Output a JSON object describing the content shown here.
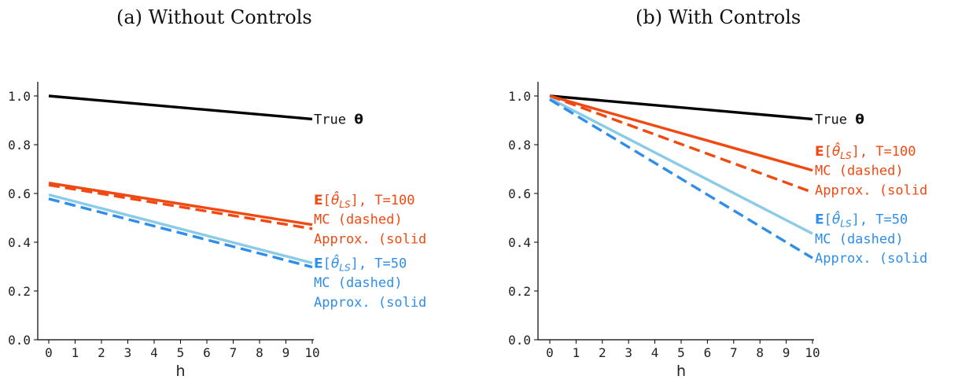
{
  "panels": [
    {
      "title": "(a) Without Controls",
      "chart_data": {
        "type": "line",
        "xlabel": "h",
        "ylabel": "",
        "xlim": [
          0,
          10
        ],
        "ylim": [
          0,
          1.0
        ],
        "x_ticks": [
          0,
          1,
          2,
          3,
          4,
          5,
          6,
          7,
          8,
          9,
          10
        ],
        "y_ticks": [
          0.0,
          0.2,
          0.4,
          0.6,
          0.8,
          1.0
        ],
        "grid": false,
        "series": [
          {
            "key": "true_theta",
            "color": "#000000",
            "dashed": false,
            "x": [
              0,
              10
            ],
            "y": [
              1.0,
              0.905
            ]
          },
          {
            "key": "approx_t100",
            "color": "#f04a12",
            "dashed": false,
            "x": [
              0,
              10
            ],
            "y": [
              0.643,
              0.472
            ]
          },
          {
            "key": "mc_t100",
            "color": "#f04a12",
            "dashed": true,
            "x": [
              0,
              10
            ],
            "y": [
              0.635,
              0.455
            ]
          },
          {
            "key": "approx_t50",
            "color": "#8ccbe8",
            "dashed": false,
            "x": [
              0,
              10
            ],
            "y": [
              0.595,
              0.315
            ]
          },
          {
            "key": "mc_t50",
            "color": "#2f8ee8",
            "dashed": true,
            "x": [
              0,
              10
            ],
            "y": [
              0.578,
              0.298
            ]
          }
        ],
        "annotations": [
          {
            "key": "true",
            "text": "True",
            "bold": "θ",
            "color": "#111111",
            "y": 0.905
          },
          {
            "key": "t100_head",
            "bold": "E",
            "text": "], T=100",
            "color": "#f04a12",
            "y": 0.575
          },
          {
            "key": "t100_mc",
            "text": "MC (dashed)",
            "color": "#f04a12",
            "y": 0.495
          },
          {
            "key": "t100_approx",
            "text": "Approx. (solid",
            "color": "#f04a12",
            "y": 0.415
          },
          {
            "key": "t50_head",
            "bold": "E",
            "text": "], T=50",
            "color": "#2f8ee8",
            "y": 0.315
          },
          {
            "key": "t50_mc",
            "text": "MC (dashed)",
            "color": "#2f8ee8",
            "y": 0.235
          },
          {
            "key": "t50_approx",
            "text": "Approx. (solid",
            "color": "#2f8ee8",
            "y": 0.155
          }
        ]
      }
    },
    {
      "title": "(b) With Controls",
      "chart_data": {
        "type": "line",
        "xlabel": "h",
        "ylabel": "",
        "xlim": [
          0,
          10
        ],
        "ylim": [
          0,
          1.0
        ],
        "x_ticks": [
          0,
          1,
          2,
          3,
          4,
          5,
          6,
          7,
          8,
          9,
          10
        ],
        "y_ticks": [
          0.0,
          0.2,
          0.4,
          0.6,
          0.8,
          1.0
        ],
        "grid": false,
        "series": [
          {
            "key": "true_theta",
            "color": "#000000",
            "dashed": false,
            "x": [
              0,
              10
            ],
            "y": [
              1.0,
              0.905
            ]
          },
          {
            "key": "approx_t100",
            "color": "#f04a12",
            "dashed": false,
            "x": [
              0,
              10
            ],
            "y": [
              1.0,
              0.695
            ]
          },
          {
            "key": "mc_t100",
            "color": "#f04a12",
            "dashed": true,
            "x": [
              0,
              10
            ],
            "y": [
              1.0,
              0.605
            ]
          },
          {
            "key": "approx_t50",
            "color": "#8ccbe8",
            "dashed": false,
            "x": [
              0,
              10
            ],
            "y": [
              0.99,
              0.435
            ]
          },
          {
            "key": "mc_t50",
            "color": "#2f8ee8",
            "dashed": true,
            "x": [
              0,
              10
            ],
            "y": [
              0.985,
              0.335
            ]
          }
        ],
        "annotations": [
          {
            "key": "true",
            "text": "True",
            "bold": "θ",
            "color": "#111111",
            "y": 0.905
          },
          {
            "key": "t100_head",
            "bold": "E",
            "text": "], T=100",
            "color": "#f04a12",
            "y": 0.775
          },
          {
            "key": "t100_mc",
            "text": "MC (dashed)",
            "color": "#f04a12",
            "y": 0.695
          },
          {
            "key": "t100_approx",
            "text": "Approx. (solid",
            "color": "#f04a12",
            "y": 0.615
          },
          {
            "key": "t50_head",
            "bold": "E",
            "text": "], T=50",
            "color": "#2f8ee8",
            "y": 0.495
          },
          {
            "key": "t50_mc",
            "text": "MC (dashed)",
            "color": "#2f8ee8",
            "y": 0.415
          },
          {
            "key": "t50_approx",
            "text": "Approx. (solid",
            "color": "#2f8ee8",
            "y": 0.335
          }
        ]
      }
    }
  ]
}
